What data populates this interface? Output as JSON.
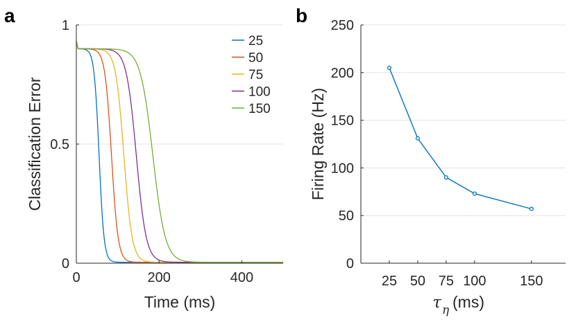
{
  "panels": {
    "a": "a",
    "b": "b"
  },
  "chart_data": [
    {
      "type": "line",
      "panel": "a",
      "xlabel": "Time (ms)",
      "ylabel": "Classification Error",
      "xlim": [
        0,
        500
      ],
      "ylim": [
        0,
        1
      ],
      "xticks": [
        0,
        200,
        400
      ],
      "yticks": [
        0,
        0.5,
        1
      ],
      "ytick_labels": [
        "0",
        "0.5",
        "1"
      ],
      "grid": "horizontal",
      "legend_position": "top-right",
      "initial_error": 0.9,
      "series": [
        {
          "name": "25",
          "color": "#0072BD",
          "plateau_end": 25,
          "midpoint": 55,
          "width": 6
        },
        {
          "name": "50",
          "color": "#D95319",
          "plateau_end": 28,
          "midpoint": 85,
          "width": 8
        },
        {
          "name": "75",
          "color": "#EDB120",
          "plateau_end": 40,
          "midpoint": 115,
          "width": 10
        },
        {
          "name": "100",
          "color": "#7E2F8E",
          "plateau_end": 50,
          "midpoint": 145,
          "width": 12
        },
        {
          "name": "150",
          "color": "#77AC30",
          "plateau_end": 65,
          "midpoint": 185,
          "width": 15
        }
      ]
    },
    {
      "type": "line",
      "panel": "b",
      "xlabel": "(ms)",
      "xlabel_symbol": "τ",
      "xlabel_subscript": "η",
      "ylabel": "Firing Rate (Hz)",
      "ylim": [
        0,
        250
      ],
      "yticks": [
        0,
        50,
        100,
        150,
        200,
        250
      ],
      "xticks": [
        25,
        50,
        75,
        100,
        150
      ],
      "xlim": [
        0,
        180
      ],
      "grid": "horizontal",
      "color": "#0072BD",
      "x": [
        25,
        50,
        75,
        100,
        150
      ],
      "y": [
        205,
        131,
        90,
        73,
        57
      ]
    }
  ]
}
